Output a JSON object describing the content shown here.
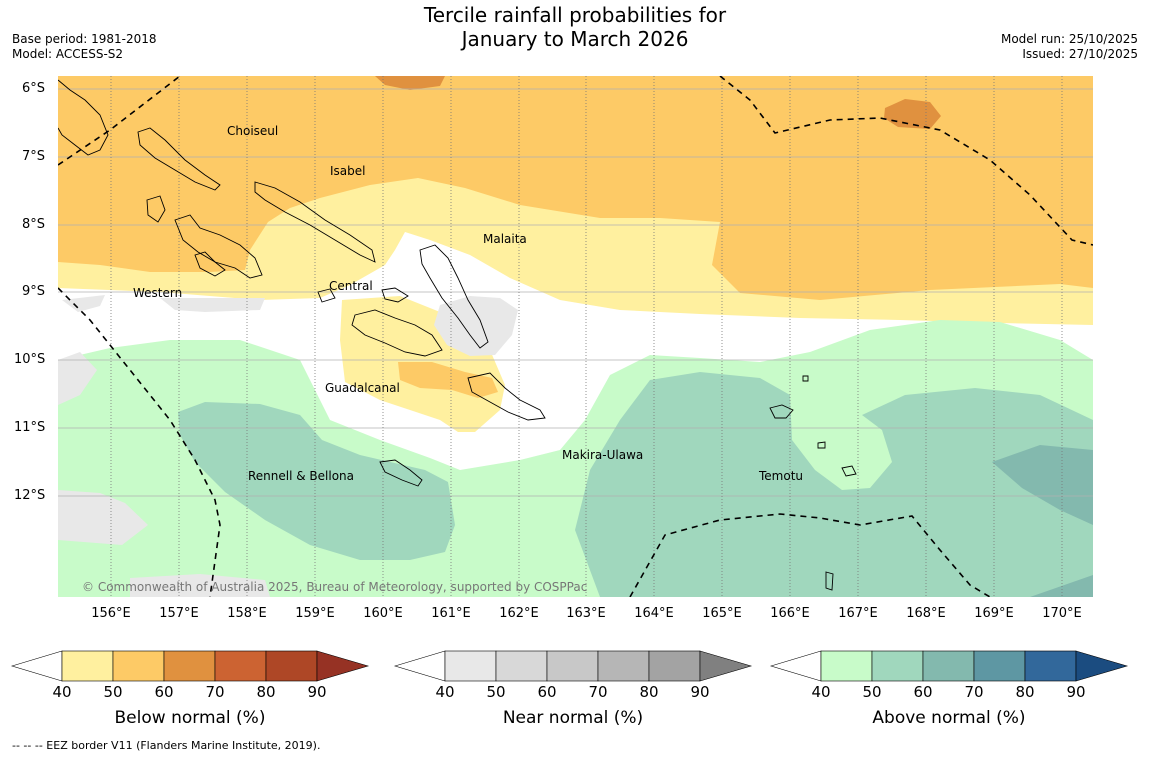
{
  "header": {
    "title_line1": "Tercile rainfall probabilities for",
    "title_line2": "January to March 2026",
    "base_period": "Base period: 1981-2018",
    "model": "Model: ACCESS-S2",
    "model_run": "Model run: 25/10/2025",
    "issued": "Issued: 27/10/2025"
  },
  "map": {
    "lat_labels": [
      "6°S",
      "7°S",
      "8°S",
      "9°S",
      "10°S",
      "11°S",
      "12°S"
    ],
    "lon_labels": [
      "156°E",
      "157°E",
      "158°E",
      "159°E",
      "160°E",
      "161°E",
      "162°E",
      "163°E",
      "164°E",
      "165°E",
      "166°E",
      "167°E",
      "168°E",
      "169°E",
      "170°E"
    ],
    "places": {
      "choiseul": "Choiseul",
      "isabel": "Isabel",
      "malaita": "Malaita",
      "western": "Western",
      "central": "Central",
      "guadalcanal": "Guadalcanal",
      "makira": "Makira-Ulawa",
      "rennell": "Rennell & Bellona",
      "temotu": "Temotu"
    },
    "copyright": "© Commonwealth of Australia 2025, Bureau of Meteorology, supported by COSPPac",
    "colors": {
      "below": [
        "#fff09f",
        "#fdca66",
        "#e0913f",
        "#cc6332",
        "#ae4726",
        "#963224"
      ],
      "near": [
        "#e8e8e8",
        "#d8d8d8",
        "#c8c8c8",
        "#b6b6b6",
        "#a3a3a3",
        "#808080"
      ],
      "above": [
        "#c8fbc9",
        "#a0d7bd",
        "#83b9ae",
        "#5e97a3",
        "#32689b",
        "#1b4c80"
      ]
    }
  },
  "colorbars": {
    "ticks": [
      "40",
      "50",
      "60",
      "70",
      "80",
      "90"
    ],
    "below_label": "Below normal (%)",
    "near_label": "Near normal (%)",
    "above_label": "Above normal (%)"
  },
  "footnote": "--  --  -- EEZ border V11 (Flanders Marine Institute, 2019)."
}
